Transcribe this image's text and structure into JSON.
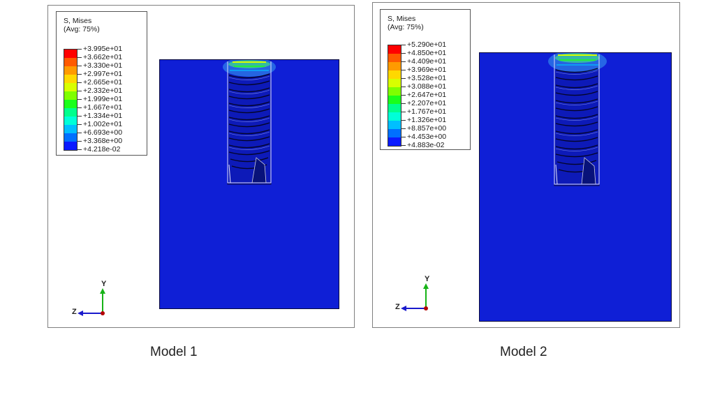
{
  "panels": [
    {
      "legend": {
        "title": "S, Mises",
        "subtitle": "(Avg: 75%)",
        "labels": [
          "+3.995e+01",
          "+3.662e+01",
          "+3.330e+01",
          "+2.997e+01",
          "+2.665e+01",
          "+2.332e+01",
          "+1.999e+01",
          "+1.667e+01",
          "+1.334e+01",
          "+1.002e+01",
          "+6.693e+00",
          "+3.368e+00",
          "+4.218e-02"
        ]
      },
      "axis": {
        "y": "Y",
        "z": "Z"
      },
      "caption": "Model 1"
    },
    {
      "legend": {
        "title": "S, Mises",
        "subtitle": "(Avg: 75%)",
        "labels": [
          "+5.290e+01",
          "+4.850e+01",
          "+4.409e+01",
          "+3.969e+01",
          "+3.528e+01",
          "+3.088e+01",
          "+2.647e+01",
          "+2.207e+01",
          "+1.767e+01",
          "+1.326e+01",
          "+8.857e+00",
          "+4.453e+00",
          "+4.883e-02"
        ]
      },
      "axis": {
        "y": "Y",
        "z": "Z"
      },
      "caption": "Model 2"
    }
  ],
  "colors": {
    "scale": [
      "#ff0000",
      "#ff5a00",
      "#ff9a00",
      "#ffd800",
      "#d8ff00",
      "#7fff00",
      "#1aff1a",
      "#00ff8c",
      "#00ffd8",
      "#00bfff",
      "#0070ff",
      "#0a1aff"
    ],
    "block": "#0f1fd6"
  }
}
